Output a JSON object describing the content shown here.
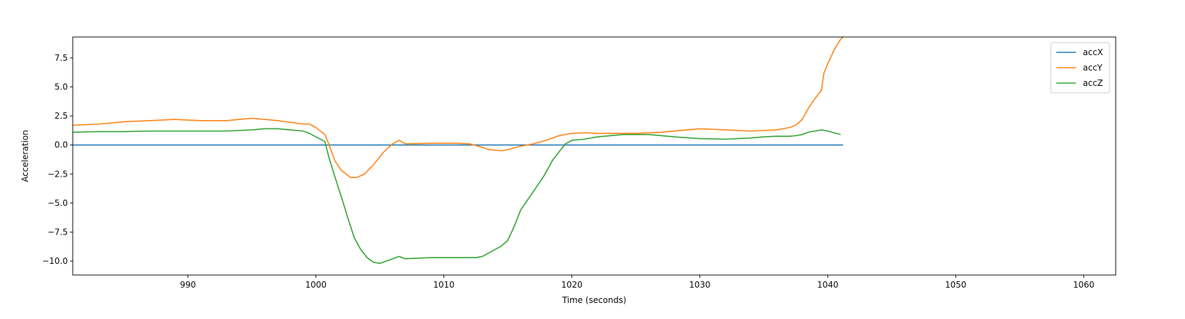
{
  "chart_data": {
    "type": "line",
    "title": "",
    "xlabel": "Time (seconds)",
    "ylabel": "Acceleration",
    "xlim": [
      981,
      1062.5
    ],
    "ylim": [
      -11.2,
      9.3
    ],
    "xticks": [
      990,
      1000,
      1010,
      1020,
      1030,
      1040,
      1050,
      1060
    ],
    "yticks": [
      -10.0,
      -7.5,
      -5.0,
      -2.5,
      0.0,
      2.5,
      5.0,
      7.5
    ],
    "grid": false,
    "legend_position": "top-right",
    "series": [
      {
        "name": "accX",
        "color": "#1f77b4",
        "x": [
          981,
          1041.2
        ],
        "y": [
          0.0,
          0.0
        ]
      },
      {
        "name": "accY",
        "color": "#ff7f0e",
        "x": [
          981,
          983,
          985,
          987,
          989,
          991,
          993,
          995,
          997,
          999,
          999.5,
          1000,
          1000.7,
          1001,
          1001.5,
          1002,
          1002.7,
          1003.2,
          1003.8,
          1004.5,
          1005.3,
          1006,
          1006.5,
          1007,
          1009,
          1011,
          1012,
          1013,
          1013.5,
          1014.5,
          1015,
          1016,
          1017,
          1018,
          1019,
          1020,
          1021,
          1022,
          1025,
          1027,
          1030,
          1032,
          1034,
          1036,
          1037,
          1037.5,
          1038,
          1038.5,
          1039,
          1039.5,
          1039.7,
          1040,
          1040.5,
          1041,
          1041.2
        ],
        "y": [
          1.7,
          1.8,
          2.0,
          2.1,
          2.2,
          2.1,
          2.1,
          2.3,
          2.1,
          1.8,
          1.8,
          1.5,
          0.9,
          0.1,
          -1.4,
          -2.2,
          -2.8,
          -2.8,
          -2.5,
          -1.7,
          -0.6,
          0.1,
          0.4,
          0.1,
          0.15,
          0.15,
          0.1,
          -0.2,
          -0.4,
          -0.5,
          -0.4,
          -0.1,
          0.1,
          0.4,
          0.8,
          1.0,
          1.05,
          1.0,
          1.0,
          1.1,
          1.4,
          1.3,
          1.2,
          1.3,
          1.5,
          1.7,
          2.2,
          3.2,
          4.0,
          4.7,
          6.2,
          7.0,
          8.2,
          9.1,
          9.3
        ]
      },
      {
        "name": "accZ",
        "color": "#2ca02c",
        "x": [
          981,
          983,
          985,
          987,
          990,
          993,
          995,
          996,
          997,
          998,
          999,
          999.5,
          1000,
          1000.7,
          1001,
          1001.5,
          1002,
          1002.5,
          1003,
          1003.5,
          1004,
          1004.5,
          1005,
          1005.5,
          1006,
          1006.5,
          1007,
          1009,
          1011,
          1012.5,
          1013,
          1013.5,
          1014.5,
          1015,
          1015.5,
          1016,
          1017,
          1017.8,
          1018.5,
          1019,
          1019.5,
          1020,
          1021,
          1022,
          1024,
          1026,
          1028,
          1030,
          1032,
          1034,
          1035,
          1036,
          1037,
          1037.5,
          1038,
          1038.5,
          1039,
          1039.5,
          1040,
          1041
        ],
        "y": [
          1.1,
          1.15,
          1.15,
          1.2,
          1.2,
          1.2,
          1.3,
          1.4,
          1.4,
          1.3,
          1.2,
          1.0,
          0.7,
          0.3,
          -1.0,
          -2.8,
          -4.5,
          -6.3,
          -8.0,
          -9.0,
          -9.7,
          -10.1,
          -10.2,
          -10.0,
          -9.8,
          -9.6,
          -9.8,
          -9.7,
          -9.7,
          -9.7,
          -9.6,
          -9.3,
          -8.7,
          -8.2,
          -7.0,
          -5.6,
          -4.0,
          -2.7,
          -1.3,
          -0.6,
          0.1,
          0.4,
          0.5,
          0.7,
          0.9,
          0.9,
          0.7,
          0.55,
          0.5,
          0.6,
          0.7,
          0.75,
          0.75,
          0.8,
          0.9,
          1.1,
          1.2,
          1.3,
          1.2,
          0.9
        ]
      }
    ]
  }
}
